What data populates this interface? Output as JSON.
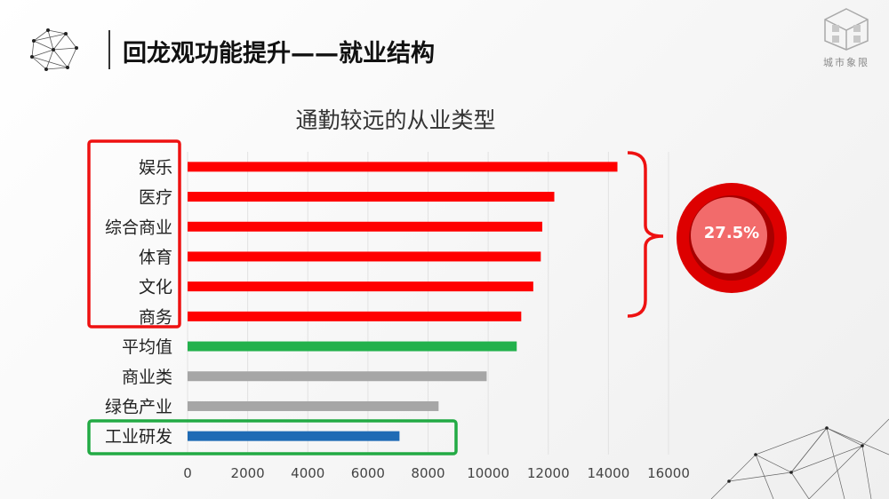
{
  "header": {
    "title": "回龙观功能提升——就业结构",
    "brand": "城市象限"
  },
  "highlight": {
    "share_label": "27.5%",
    "group_box_color": "#ee1111",
    "focus_box_color": "#22aa44"
  },
  "chart_data": {
    "type": "bar",
    "orientation": "horizontal",
    "title": "通勤较远的从业类型",
    "categories": [
      "娱乐",
      "医疗",
      "综合商业",
      "体育",
      "文化",
      "商务",
      "平均值",
      "商业类",
      "绿色产业",
      "工业研发"
    ],
    "values": [
      14300,
      12200,
      11800,
      11750,
      11500,
      11100,
      10950,
      9950,
      8350,
      7050
    ],
    "colors": [
      "#ff0000",
      "#ff0000",
      "#ff0000",
      "#ff0000",
      "#ff0000",
      "#ff0000",
      "#22b14c",
      "#a6a6a6",
      "#a6a6a6",
      "#1f6bb5"
    ],
    "x_ticks": [
      0,
      2000,
      4000,
      6000,
      8000,
      10000,
      12000,
      14000,
      16000
    ],
    "xlim": [
      0,
      16000
    ],
    "grid": true,
    "legend": "none"
  }
}
